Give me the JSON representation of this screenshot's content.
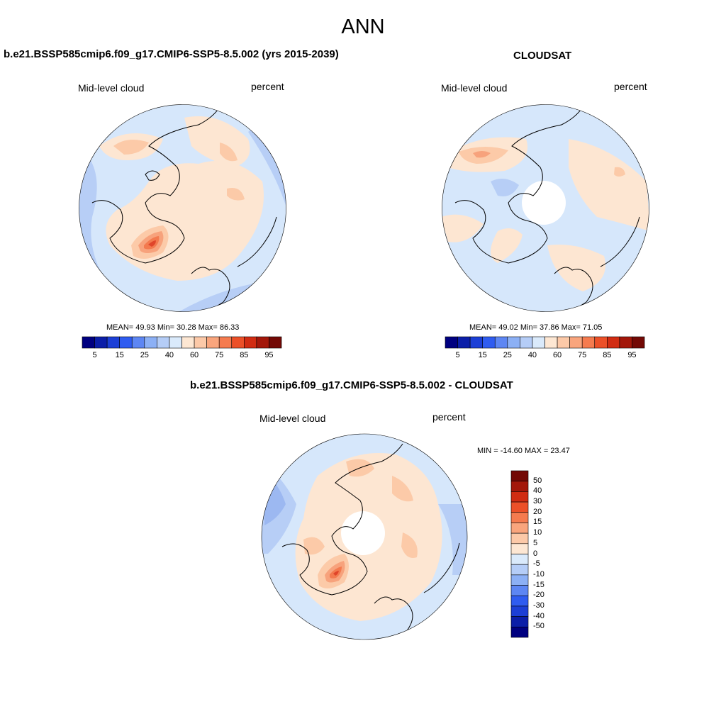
{
  "figure": {
    "title": "ANN"
  },
  "panels": {
    "model": {
      "title": "b.e21.BSSP585cmip6.f09_g17.CMIP6-SSP5-8.5.002 (yrs 2015-2039)",
      "left_label": "Mid-level cloud",
      "right_label": "percent",
      "stats": "MEAN=  49.93   Min=  30.28   Max=  86.33",
      "has_polar_hole": false
    },
    "obs": {
      "title": "CLOUDSAT",
      "left_label": "Mid-level cloud",
      "right_label": "percent",
      "stats": "MEAN=  49.02   Min=  37.86   Max=  71.05",
      "has_polar_hole": true
    },
    "diff": {
      "title": "b.e21.BSSP585cmip6.f09_g17.CMIP6-SSP5-8.5.002 - CLOUDSAT",
      "left_label": "Mid-level cloud",
      "right_label": "percent",
      "stats": "MIN = -14.60 MAX =  23.47",
      "has_polar_hole": true
    }
  },
  "colorbar_abs": {
    "orientation": "horizontal",
    "tick_labels": [
      "5",
      "15",
      "25",
      "40",
      "60",
      "75",
      "85",
      "95"
    ],
    "colors": [
      "#000080",
      "#0b1ea8",
      "#1c3fd6",
      "#2f5cf0",
      "#5d86f3",
      "#8cb0f5",
      "#b5cdf7",
      "#daeafb",
      "#fde7d3",
      "#fcc9a8",
      "#f9a57d",
      "#f57b4f",
      "#ec5028",
      "#d12c12",
      "#a3170a",
      "#730905"
    ]
  },
  "colorbar_diff": {
    "orientation": "vertical",
    "tick_labels": [
      "50",
      "40",
      "30",
      "20",
      "15",
      "10",
      "5",
      "0",
      "-5",
      "-10",
      "-15",
      "-20",
      "-30",
      "-40",
      "-50"
    ],
    "colors": [
      "#730905",
      "#a3170a",
      "#d12c12",
      "#ec5028",
      "#f57b4f",
      "#f9a57d",
      "#fcc9a8",
      "#fde7d3",
      "#daeafb",
      "#b5cdf7",
      "#8cb0f5",
      "#5d86f3",
      "#2f5cf0",
      "#1c3fd6",
      "#0b1ea8",
      "#000080"
    ]
  },
  "map_colors": {
    "pale_blue": "#d6e7fb",
    "light_blue": "#b7cef6",
    "mid_blue": "#9cb8f1",
    "pale_orange": "#fde6d2",
    "light_orange": "#fccaa8",
    "mid_orange": "#f7a27c",
    "orange": "#f37a4f",
    "red": "#e0452a",
    "coast": "#000000"
  }
}
